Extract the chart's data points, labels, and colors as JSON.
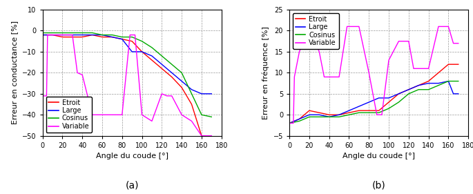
{
  "plot_a": {
    "xlabel": "Angle du coude [°]",
    "ylabel": "Erreur en conductance [%]",
    "xlim": [
      0,
      180
    ],
    "ylim": [
      -50,
      10
    ],
    "yticks": [
      10,
      0,
      -10,
      -20,
      -30,
      -40,
      -50
    ],
    "xticks": [
      0,
      20,
      40,
      60,
      80,
      100,
      120,
      140,
      160,
      180
    ],
    "etroit": {
      "x": [
        0,
        5,
        10,
        20,
        30,
        40,
        50,
        60,
        70,
        80,
        90,
        100,
        110,
        120,
        130,
        140,
        150,
        160,
        165,
        170
      ],
      "y": [
        -2,
        -2,
        -2,
        -3,
        -3,
        -3,
        -2,
        -3,
        -3,
        -4,
        -5,
        -10,
        -14,
        -18,
        -22,
        -27,
        -35,
        -50,
        -50,
        -50
      ],
      "color": "#ff0000"
    },
    "large": {
      "x": [
        0,
        10,
        20,
        30,
        40,
        50,
        60,
        70,
        80,
        90,
        100,
        110,
        120,
        130,
        140,
        150,
        160,
        165,
        170
      ],
      "y": [
        -2,
        -2,
        -2,
        -2,
        -2,
        -2,
        -2,
        -3,
        -4,
        -10,
        -10,
        -12,
        -16,
        -20,
        -24,
        -28,
        -30,
        -30,
        -30
      ],
      "color": "#0000ff"
    },
    "cosinus": {
      "x": [
        0,
        10,
        20,
        30,
        40,
        50,
        60,
        70,
        80,
        90,
        100,
        110,
        120,
        130,
        140,
        150,
        160,
        170
      ],
      "y": [
        -1,
        -1,
        -1,
        -1,
        -1,
        -1,
        -2,
        -2,
        -3,
        -3,
        -5,
        -8,
        -12,
        -16,
        -20,
        -30,
        -40,
        -41
      ],
      "color": "#00aa00"
    },
    "variable": {
      "x": [
        0,
        4,
        5,
        10,
        20,
        30,
        35,
        40,
        50,
        60,
        70,
        80,
        88,
        93,
        100,
        110,
        120,
        125,
        130,
        140,
        150,
        160,
        165,
        170
      ],
      "y": [
        -31,
        -31,
        -2,
        -2,
        -2,
        -2,
        -20,
        -21,
        -40,
        -40,
        -40,
        -40,
        -2,
        -2,
        -40,
        -43,
        -30,
        -31,
        -31,
        -40,
        -43,
        -50,
        -50,
        -50
      ],
      "color": "#ff00ff"
    }
  },
  "plot_b": {
    "xlabel": "Angle du coude [°]",
    "ylabel": "Erreur en fréquence [%]",
    "xlim": [
      0,
      180
    ],
    "ylim": [
      -5,
      25
    ],
    "yticks": [
      -5,
      0,
      5,
      10,
      15,
      20,
      25
    ],
    "xticks": [
      0,
      20,
      40,
      60,
      80,
      100,
      120,
      140,
      160,
      180
    ],
    "etroit": {
      "x": [
        0,
        10,
        20,
        30,
        40,
        50,
        60,
        70,
        80,
        90,
        100,
        110,
        120,
        130,
        140,
        150,
        160,
        165,
        170
      ],
      "y": [
        -2,
        -1,
        1,
        0.5,
        0,
        0,
        0.5,
        1,
        1,
        1,
        3,
        5,
        6,
        7,
        8,
        10,
        12,
        12,
        12
      ],
      "color": "#ff0000"
    },
    "large": {
      "x": [
        0,
        10,
        20,
        30,
        40,
        50,
        60,
        70,
        80,
        90,
        100,
        110,
        120,
        130,
        140,
        150,
        160,
        165,
        170
      ],
      "y": [
        -2,
        -1,
        0,
        0,
        -0.5,
        0,
        1,
        2,
        3,
        4,
        4,
        5,
        6,
        7,
        7.5,
        7.5,
        8,
        5,
        5
      ],
      "color": "#0000ff"
    },
    "cosinus": {
      "x": [
        0,
        10,
        20,
        30,
        40,
        50,
        60,
        70,
        80,
        90,
        100,
        110,
        120,
        130,
        140,
        150,
        160,
        170
      ],
      "y": [
        -2,
        -1.5,
        -0.5,
        -0.5,
        -0.5,
        -0.5,
        0,
        0.5,
        0.5,
        0.5,
        1.5,
        3,
        5,
        6,
        6,
        7,
        8,
        8
      ],
      "color": "#00aa00"
    },
    "variable": {
      "x": [
        0,
        4,
        5,
        10,
        20,
        30,
        35,
        40,
        50,
        58,
        63,
        70,
        80,
        88,
        93,
        100,
        110,
        120,
        125,
        130,
        140,
        150,
        155,
        160,
        165,
        170
      ],
      "y": [
        -2,
        -2,
        9,
        15,
        21,
        15,
        9,
        9,
        9,
        21,
        21,
        21,
        10,
        0,
        0,
        13,
        17.5,
        17.5,
        11,
        11,
        11,
        21,
        21,
        21,
        17,
        17
      ],
      "color": "#ff00ff"
    }
  },
  "legend_labels": [
    "Etroit",
    "Large",
    "Cosinus",
    "Variable"
  ],
  "legend_colors": [
    "#ff0000",
    "#0000ff",
    "#00aa00",
    "#ff00ff"
  ],
  "grid_color": "#999999",
  "bg_color": "#ffffff",
  "label_a": "(a)",
  "label_b": "(b)"
}
